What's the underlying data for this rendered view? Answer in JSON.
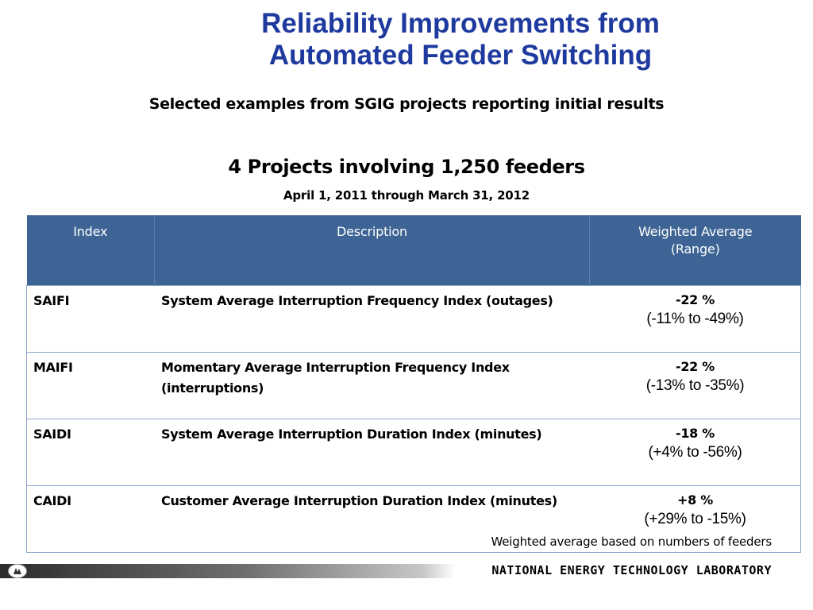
{
  "title": {
    "line1": "Reliability Improvements from",
    "line2": "Automated Feeder Switching"
  },
  "subtitle": "Selected examples from SGIG projects reporting initial results",
  "headline": "4 Projects involving 1,250 feeders",
  "date_range": "April 1, 2011 through March 31, 2012",
  "table": {
    "headers": {
      "index": "Index",
      "description": "Description",
      "weighted_line1": "Weighted Average",
      "weighted_line2": "(Range)"
    },
    "rows": [
      {
        "index": "SAIFI",
        "description": "System Average Interruption Frequency Index (outages)",
        "average": "-22 %",
        "range": "(-11% to -49%)"
      },
      {
        "index": "MAIFI",
        "description": "Momentary Average Interruption Frequency Index (interruptions)",
        "average": "-22 %",
        "range": "(-13% to -35%)"
      },
      {
        "index": "SAIDI",
        "description": "System Average Interruption Duration Index (minutes)",
        "average": "-18 %",
        "range": "(+4% to -56%)"
      },
      {
        "index": "CAIDI",
        "description": "Customer Average Interruption Duration Index (minutes)",
        "average": "+8 %",
        "range": "(+29% to -15%)"
      }
    ]
  },
  "footnote": "Weighted average based on numbers of feeders",
  "footer": {
    "organization": "NATIONAL ENERGY TECHNOLOGY LABORATORY"
  },
  "colors": {
    "title": "#1f3a9e",
    "header_bg": "#3d6494",
    "table_border": "#8aa6c8"
  }
}
